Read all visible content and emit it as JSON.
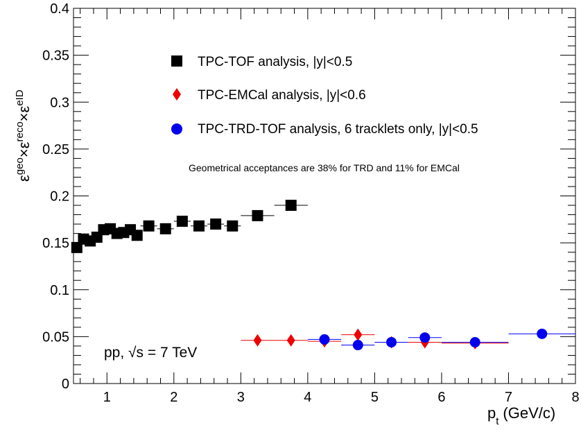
{
  "chart_data": {
    "type": "scatter",
    "xlabel": "p",
    "xlabel_sub": "t",
    "xlabel_unit": "(GeV/c)",
    "ylabel": {
      "eps1": "ε",
      "geo": "geo",
      "times1": "×ε",
      "reco": "reco",
      "times2": "×ε",
      "eid": "eID"
    },
    "xlim": [
      0.5,
      8
    ],
    "ylim": [
      0,
      0.4
    ],
    "x_ticks": [
      "1",
      "2",
      "3",
      "4",
      "5",
      "6",
      "7",
      "8"
    ],
    "y_ticks": [
      "0",
      "0.05",
      "0.1",
      "0.15",
      "0.2",
      "0.25",
      "0.3",
      "0.35",
      "0.4"
    ],
    "grid": false,
    "legend_position": "top-center",
    "series": [
      {
        "name": "TPC-TOF analysis, |y|<0.5",
        "marker": "square",
        "color": "#000000",
        "points": [
          {
            "x": 0.55,
            "y": 0.145,
            "xerr": 0.05
          },
          {
            "x": 0.65,
            "y": 0.154,
            "xerr": 0.05
          },
          {
            "x": 0.75,
            "y": 0.152,
            "xerr": 0.05
          },
          {
            "x": 0.85,
            "y": 0.156,
            "xerr": 0.05
          },
          {
            "x": 0.95,
            "y": 0.164,
            "xerr": 0.05
          },
          {
            "x": 1.05,
            "y": 0.165,
            "xerr": 0.05
          },
          {
            "x": 1.15,
            "y": 0.16,
            "xerr": 0.05
          },
          {
            "x": 1.25,
            "y": 0.161,
            "xerr": 0.05
          },
          {
            "x": 1.35,
            "y": 0.164,
            "xerr": 0.05
          },
          {
            "x": 1.45,
            "y": 0.158,
            "xerr": 0.05
          },
          {
            "x": 1.625,
            "y": 0.168,
            "xerr": 0.125
          },
          {
            "x": 1.875,
            "y": 0.165,
            "xerr": 0.125
          },
          {
            "x": 2.125,
            "y": 0.173,
            "xerr": 0.125
          },
          {
            "x": 2.375,
            "y": 0.168,
            "xerr": 0.125
          },
          {
            "x": 2.625,
            "y": 0.17,
            "xerr": 0.125
          },
          {
            "x": 2.875,
            "y": 0.168,
            "xerr": 0.125
          },
          {
            "x": 3.25,
            "y": 0.179,
            "xerr": 0.25
          },
          {
            "x": 3.75,
            "y": 0.19,
            "xerr": 0.25
          }
        ]
      },
      {
        "name": "TPC-EMCal analysis, |y|<0.6",
        "marker": "diamond",
        "color": "#ee0000",
        "points": [
          {
            "x": 3.25,
            "y": 0.046,
            "xerr": 0.25,
            "yerr": 0.001
          },
          {
            "x": 3.75,
            "y": 0.046,
            "xerr": 0.25,
            "yerr": 0.001
          },
          {
            "x": 4.25,
            "y": 0.045,
            "xerr": 0.25,
            "yerr": 0.003
          },
          {
            "x": 4.75,
            "y": 0.052,
            "xerr": 0.25,
            "yerr": 0.003
          },
          {
            "x": 5.25,
            "y": 0.044,
            "xerr": 0.25,
            "yerr": 0.003
          },
          {
            "x": 5.75,
            "y": 0.044,
            "xerr": 0.25,
            "yerr": 0.004
          },
          {
            "x": 6.5,
            "y": 0.043,
            "xerr": 0.5,
            "yerr": 0.004
          }
        ]
      },
      {
        "name": "TPC-TRD-TOF analysis, 6 tracklets only, |y|<0.5",
        "marker": "circle",
        "color": "#0000ee",
        "points": [
          {
            "x": 4.25,
            "y": 0.047,
            "xerr": 0.25
          },
          {
            "x": 4.75,
            "y": 0.041,
            "xerr": 0.25
          },
          {
            "x": 5.25,
            "y": 0.044,
            "xerr": 0.25
          },
          {
            "x": 5.75,
            "y": 0.049,
            "xerr": 0.25
          },
          {
            "x": 6.5,
            "y": 0.044,
            "xerr": 0.5
          },
          {
            "x": 7.5,
            "y": 0.053,
            "xerr": 0.5
          }
        ]
      }
    ],
    "annotations": {
      "acceptance_note": "Geometrical acceptances are 38% for TRD and 11% for EMCal",
      "collision_pre": "pp, ",
      "collision_sqrt": "√s",
      "collision_post": " = 7 TeV"
    }
  }
}
